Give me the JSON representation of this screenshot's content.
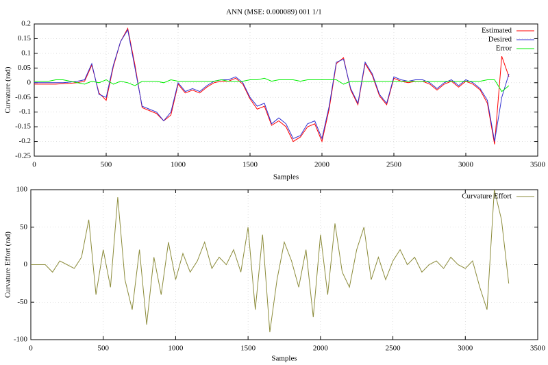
{
  "chart_data": [
    {
      "type": "line",
      "title": "ANN (MSE: 0.000089) 001 1/1",
      "x_label": "Samples",
      "y_label": "Curvature (rad)",
      "x": [
        0,
        50,
        100,
        150,
        200,
        250,
        300,
        350,
        400,
        450,
        500,
        550,
        600,
        650,
        700,
        750,
        800,
        850,
        900,
        950,
        1000,
        1050,
        1100,
        1150,
        1200,
        1250,
        1300,
        1350,
        1400,
        1450,
        1500,
        1550,
        1600,
        1650,
        1700,
        1750,
        1800,
        1850,
        1900,
        1950,
        2000,
        2050,
        2100,
        2150,
        2200,
        2250,
        2300,
        2350,
        2400,
        2450,
        2500,
        2550,
        2600,
        2650,
        2700,
        2750,
        2800,
        2850,
        2900,
        2950,
        3000,
        3050,
        3100,
        3150,
        3200,
        3250,
        3300
      ],
      "series": [
        {
          "name": "Estimated",
          "color": "#ff0000",
          "values": [
            -0.005,
            -0.005,
            -0.005,
            -0.005,
            -0.003,
            -0.002,
            0.0,
            0.005,
            0.06,
            -0.035,
            -0.06,
            0.055,
            0.14,
            0.185,
            0.06,
            -0.085,
            -0.095,
            -0.105,
            -0.13,
            -0.11,
            -0.005,
            -0.035,
            -0.025,
            -0.035,
            -0.015,
            0.0,
            0.005,
            0.005,
            0.015,
            -0.005,
            -0.055,
            -0.09,
            -0.08,
            -0.145,
            -0.13,
            -0.15,
            -0.2,
            -0.185,
            -0.15,
            -0.14,
            -0.2,
            -0.09,
            0.065,
            0.085,
            -0.025,
            -0.075,
            0.065,
            0.025,
            -0.045,
            -0.075,
            0.015,
            0.005,
            0.0,
            0.005,
            0.005,
            -0.005,
            -0.025,
            -0.005,
            0.005,
            -0.015,
            0.005,
            -0.005,
            -0.025,
            -0.07,
            -0.21,
            0.09,
            0.02
          ]
        },
        {
          "name": "Desired",
          "color": "#3030d0",
          "values": [
            0,
            0,
            0,
            0,
            0,
            0.002,
            0.005,
            0.01,
            0.065,
            -0.04,
            -0.05,
            0.06,
            0.14,
            0.18,
            0.05,
            -0.08,
            -0.09,
            -0.1,
            -0.13,
            -0.1,
            0,
            -0.03,
            -0.02,
            -0.03,
            -0.01,
            0.005,
            0.01,
            0.01,
            0.02,
            0,
            -0.05,
            -0.08,
            -0.07,
            -0.14,
            -0.12,
            -0.14,
            -0.19,
            -0.18,
            -0.14,
            -0.13,
            -0.19,
            -0.08,
            0.07,
            0.08,
            -0.02,
            -0.07,
            0.07,
            0.03,
            -0.04,
            -0.07,
            0.02,
            0.01,
            0.005,
            0.01,
            0.01,
            0,
            -0.02,
            0,
            0.01,
            -0.01,
            0.01,
            0,
            -0.02,
            -0.06,
            -0.2,
            -0.05,
            0.03
          ]
        },
        {
          "name": "Error",
          "color": "#00ee00",
          "values": [
            0.005,
            0.005,
            0.005,
            0.01,
            0.01,
            0.005,
            0.0,
            -0.005,
            0.005,
            0.0,
            0.01,
            -0.005,
            0.005,
            0.0,
            -0.01,
            0.005,
            0.005,
            0.005,
            0.0,
            0.01,
            0.005,
            0.005,
            0.005,
            0.005,
            0.005,
            0.005,
            0.01,
            0.005,
            0.005,
            0.005,
            0.01,
            0.01,
            0.015,
            0.005,
            0.01,
            0.01,
            0.01,
            0.005,
            0.01,
            0.01,
            0.01,
            0.01,
            0.01,
            -0.005,
            0.005,
            0.005,
            0.005,
            0.005,
            0.005,
            0.005,
            0.005,
            0.005,
            0.005,
            0.005,
            0.005,
            0.005,
            0.005,
            0.005,
            0.005,
            0.005,
            0.005,
            0.005,
            0.005,
            0.01,
            0.01,
            -0.03,
            -0.01
          ]
        }
      ],
      "xlim": [
        0,
        3500
      ],
      "xticks": [
        0,
        500,
        1000,
        1500,
        2000,
        2500,
        3000,
        3500
      ],
      "ylim": [
        -0.25,
        0.2
      ],
      "yticks": [
        -0.25,
        -0.2,
        -0.15,
        -0.1,
        -0.05,
        0,
        0.05,
        0.1,
        0.15,
        0.2
      ],
      "grid": true,
      "legend": "top-right"
    },
    {
      "type": "line",
      "x_label": "Samples",
      "y_label": "Curvature Effort (rad)",
      "x": [
        0,
        50,
        100,
        150,
        200,
        250,
        300,
        350,
        400,
        450,
        500,
        550,
        600,
        650,
        700,
        750,
        800,
        850,
        900,
        950,
        1000,
        1050,
        1100,
        1150,
        1200,
        1250,
        1300,
        1350,
        1400,
        1450,
        1500,
        1550,
        1600,
        1650,
        1700,
        1750,
        1800,
        1850,
        1900,
        1950,
        2000,
        2050,
        2100,
        2150,
        2200,
        2250,
        2300,
        2350,
        2400,
        2450,
        2500,
        2550,
        2600,
        2650,
        2700,
        2750,
        2800,
        2850,
        2900,
        2950,
        3000,
        3050,
        3100,
        3150,
        3200,
        3250,
        3300
      ],
      "series": [
        {
          "name": "Curvature Effort",
          "color": "#8b8b3a",
          "values": [
            0,
            0,
            0,
            -10,
            5,
            0,
            -5,
            10,
            60,
            -40,
            20,
            -30,
            90,
            -20,
            -60,
            20,
            -80,
            10,
            -40,
            30,
            -20,
            15,
            -10,
            5,
            30,
            -5,
            10,
            0,
            20,
            -10,
            50,
            -60,
            40,
            -90,
            -20,
            30,
            5,
            -30,
            20,
            -70,
            40,
            -40,
            55,
            -10,
            -30,
            20,
            50,
            -20,
            10,
            -20,
            5,
            20,
            0,
            10,
            -10,
            0,
            5,
            -5,
            10,
            0,
            -5,
            5,
            -30,
            -60,
            100,
            60,
            -25
          ]
        }
      ],
      "xlim": [
        0,
        3500
      ],
      "xticks": [
        0,
        500,
        1000,
        1500,
        2000,
        2500,
        3000,
        3500
      ],
      "ylim": [
        -100,
        100
      ],
      "yticks": [
        -100,
        -50,
        0,
        50,
        100
      ],
      "grid": true,
      "legend": "top-right"
    }
  ]
}
